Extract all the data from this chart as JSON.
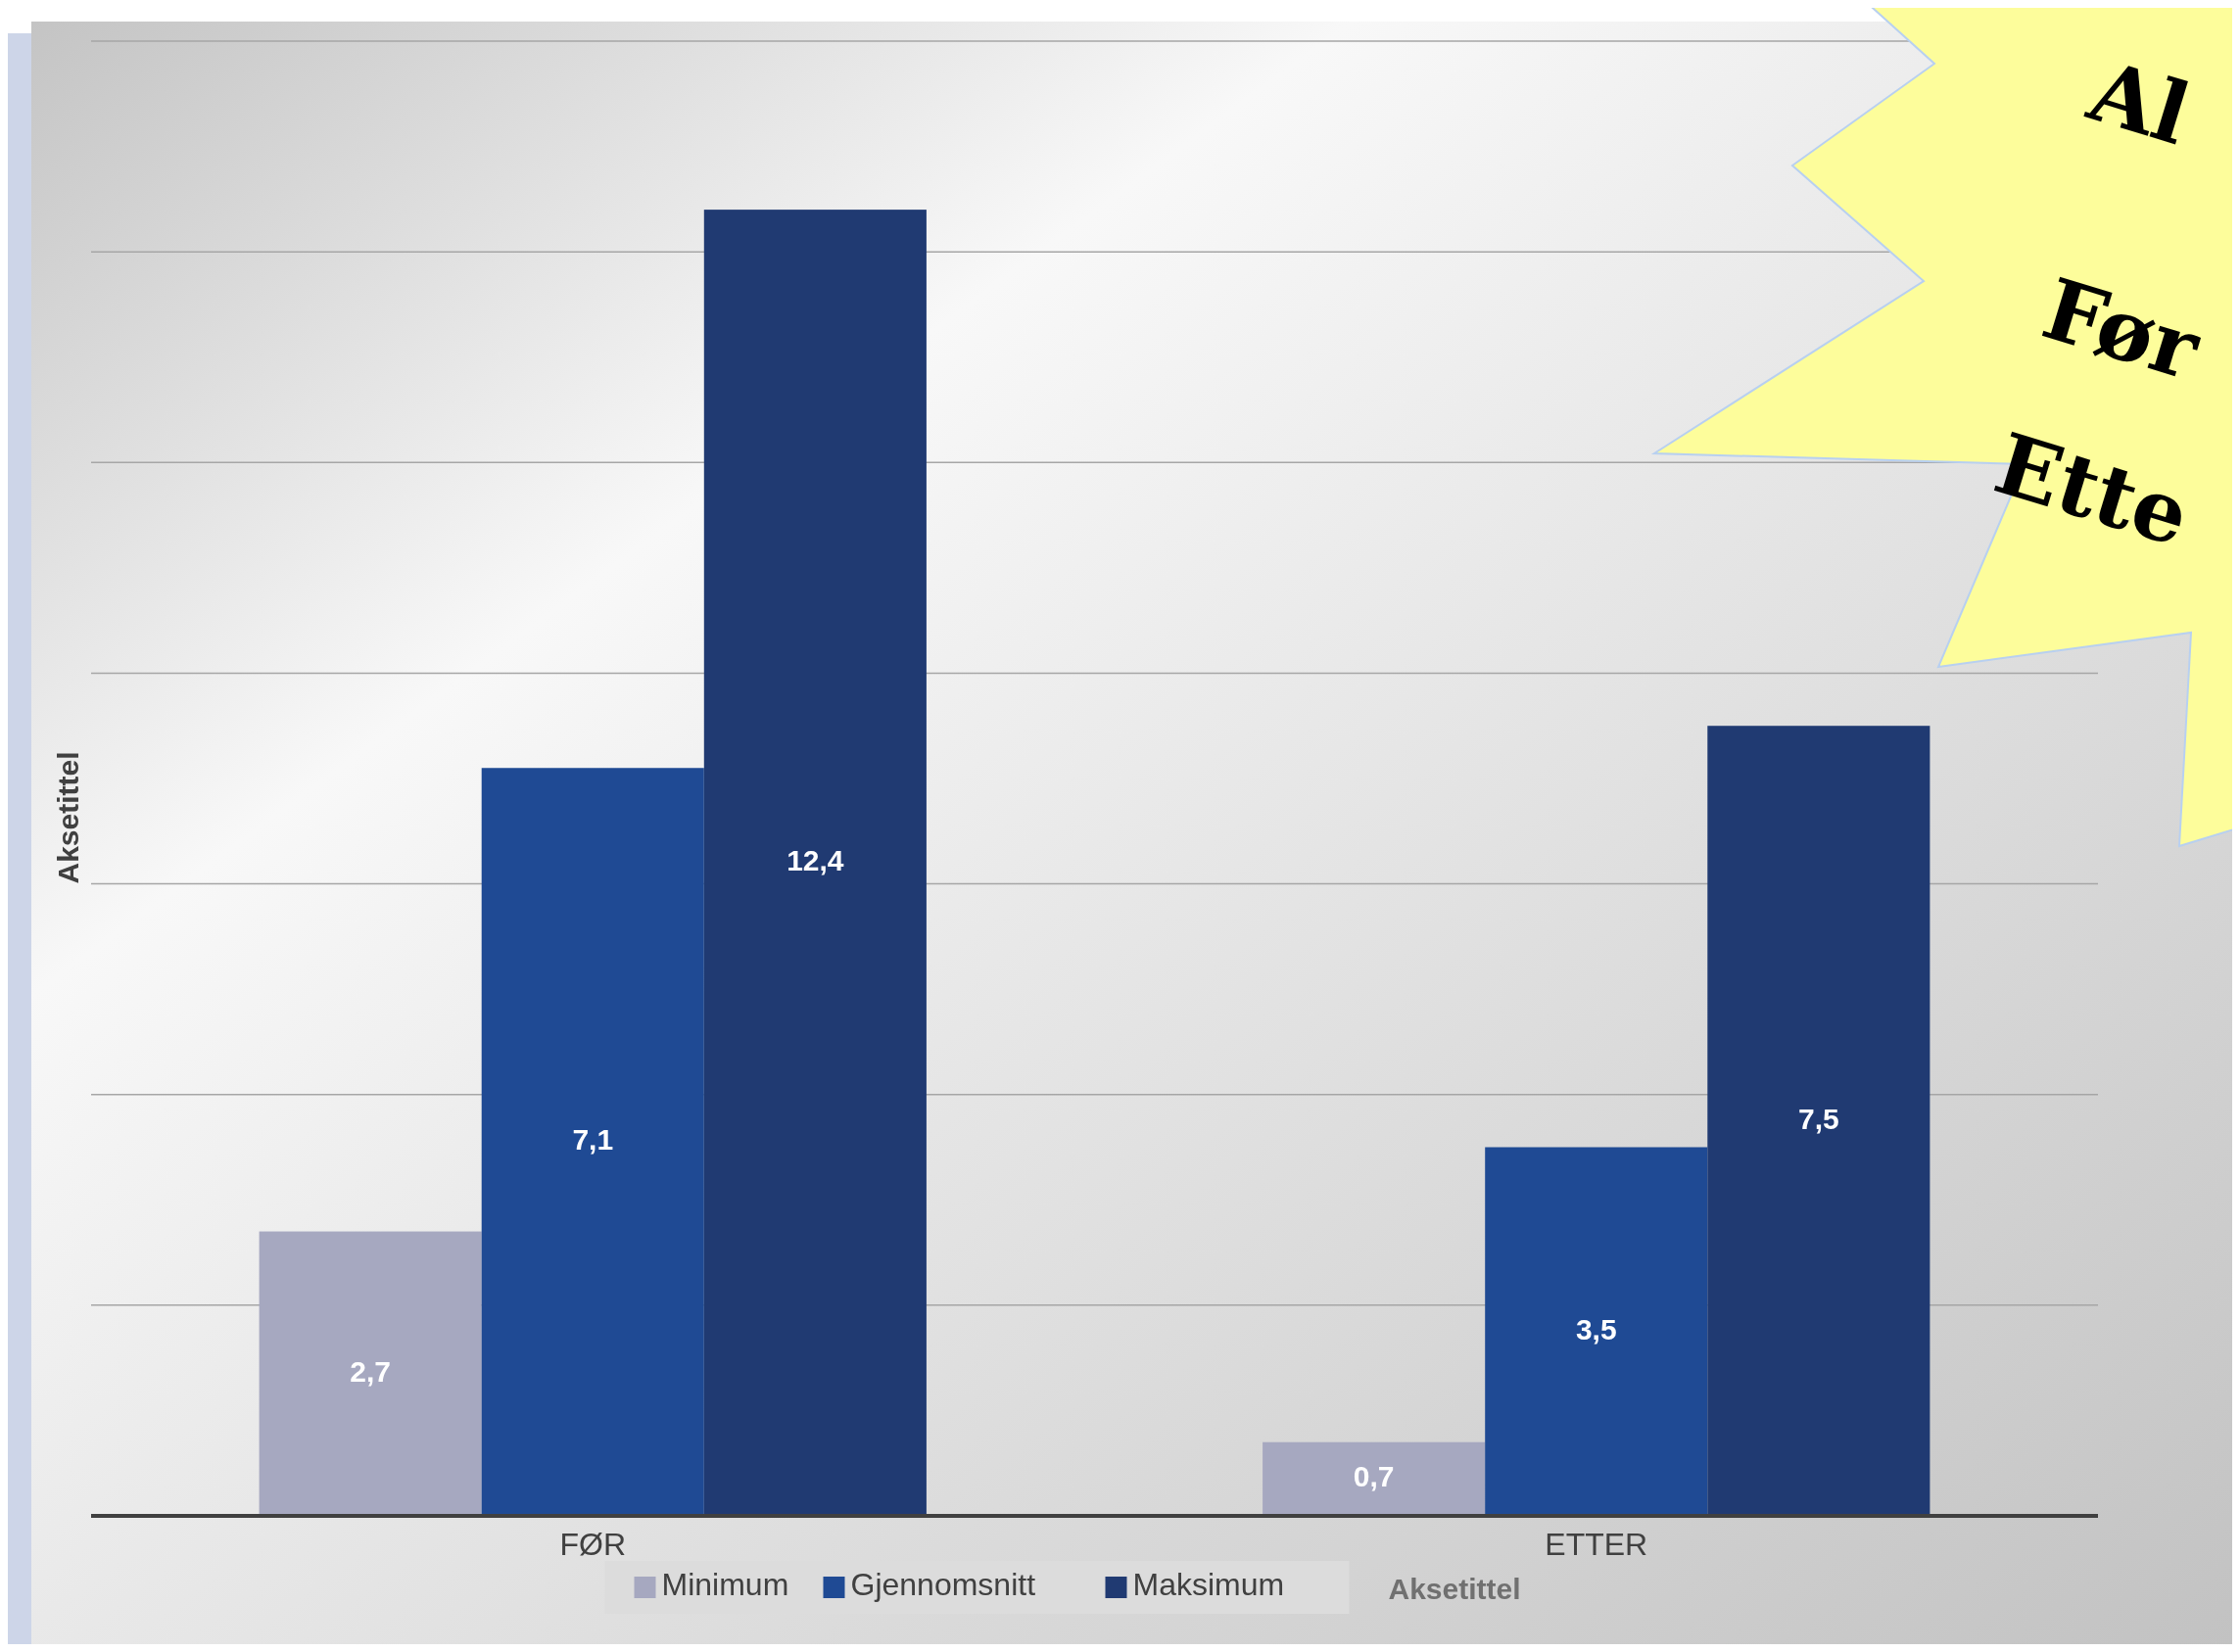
{
  "chart_data": {
    "type": "bar",
    "categories": [
      "FØR",
      "ETTER"
    ],
    "series": [
      {
        "name": "Minimum",
        "color": "#a6a8c0",
        "values": [
          2.7,
          0.7
        ],
        "value_labels": [
          "2,7",
          "0,7"
        ]
      },
      {
        "name": "Gjennomsnitt",
        "color": "#1f4a94",
        "values": [
          7.1,
          3.5
        ],
        "value_labels": [
          "7,1",
          "3,5"
        ]
      },
      {
        "name": "Maksimum",
        "color": "#203a72",
        "values": [
          12.4,
          7.5
        ],
        "value_labels": [
          "12,4",
          "7,5"
        ]
      }
    ],
    "ylim": [
      0,
      14
    ],
    "yticks": [
      {
        "value": 0,
        "label": null
      },
      {
        "value": 2,
        "label": null
      },
      {
        "value": 4,
        "label": null
      },
      {
        "value": 6,
        "label": null
      },
      {
        "value": 8,
        "label": null
      },
      {
        "value": 10,
        "label": null
      },
      {
        "value": 12,
        "label": null
      },
      {
        "value": 14,
        "label": null
      }
    ],
    "tick_labels": "x",
    "grid": "y",
    "legend": "bottom",
    "xlabel": "Aksetittel",
    "ylabel": "Aksetittel",
    "annotations": [
      "Al",
      "Før",
      "Ette"
    ]
  }
}
